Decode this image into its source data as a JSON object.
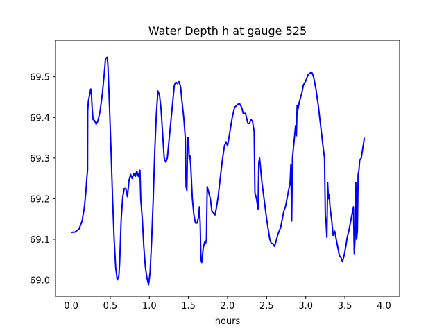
{
  "chart_data": {
    "type": "line",
    "title": "Water Depth h at gauge 525",
    "xlabel": "hours",
    "ylabel": "",
    "xlim": [
      -0.2,
      4.2
    ],
    "ylim": [
      68.96,
      69.59
    ],
    "xticks": [
      0.0,
      0.5,
      1.0,
      1.5,
      2.0,
      2.5,
      3.0,
      3.5,
      4.0
    ],
    "yticks": [
      69.0,
      69.1,
      69.2,
      69.3,
      69.4,
      69.5
    ],
    "xtick_labels": [
      "0.0",
      "0.5",
      "1.0",
      "1.5",
      "2.0",
      "2.5",
      "3.0",
      "3.5",
      "4.0"
    ],
    "ytick_labels": [
      "69.0",
      "69.1",
      "69.2",
      "69.3",
      "69.4",
      "69.5"
    ],
    "grid": false,
    "series": [
      {
        "color": "#0000ff",
        "points": [
          [
            0.0,
            69.117
          ],
          [
            0.05,
            69.118
          ],
          [
            0.1,
            69.125
          ],
          [
            0.14,
            69.145
          ],
          [
            0.17,
            69.18
          ],
          [
            0.19,
            69.22
          ],
          [
            0.2,
            69.25
          ],
          [
            0.21,
            69.27
          ],
          [
            0.212,
            69.415
          ],
          [
            0.22,
            69.44
          ],
          [
            0.24,
            69.46
          ],
          [
            0.25,
            69.47
          ],
          [
            0.26,
            69.455
          ],
          [
            0.27,
            69.42
          ],
          [
            0.28,
            69.395
          ],
          [
            0.3,
            69.392
          ],
          [
            0.32,
            69.383
          ],
          [
            0.34,
            69.39
          ],
          [
            0.37,
            69.415
          ],
          [
            0.4,
            69.46
          ],
          [
            0.42,
            69.5
          ],
          [
            0.44,
            69.545
          ],
          [
            0.46,
            69.548
          ],
          [
            0.47,
            69.53
          ],
          [
            0.49,
            69.43
          ],
          [
            0.51,
            69.32
          ],
          [
            0.53,
            69.2
          ],
          [
            0.55,
            69.1
          ],
          [
            0.57,
            69.03
          ],
          [
            0.59,
            69.0
          ],
          [
            0.61,
            69.01
          ],
          [
            0.62,
            69.04
          ],
          [
            0.64,
            69.15
          ],
          [
            0.66,
            69.205
          ],
          [
            0.68,
            69.225
          ],
          [
            0.7,
            69.225
          ],
          [
            0.72,
            69.205
          ],
          [
            0.74,
            69.245
          ],
          [
            0.76,
            69.26
          ],
          [
            0.78,
            69.25
          ],
          [
            0.8,
            69.262
          ],
          [
            0.82,
            69.255
          ],
          [
            0.84,
            69.268
          ],
          [
            0.86,
            69.255
          ],
          [
            0.88,
            69.27
          ],
          [
            0.89,
            69.2
          ],
          [
            0.91,
            69.15
          ],
          [
            0.93,
            69.08
          ],
          [
            0.95,
            69.03
          ],
          [
            0.97,
            69.005
          ],
          [
            0.99,
            68.988
          ],
          [
            1.01,
            69.02
          ],
          [
            1.03,
            69.1
          ],
          [
            1.05,
            69.2
          ],
          [
            1.07,
            69.32
          ],
          [
            1.09,
            69.41
          ],
          [
            1.11,
            69.465
          ],
          [
            1.13,
            69.455
          ],
          [
            1.15,
            69.42
          ],
          [
            1.17,
            69.36
          ],
          [
            1.19,
            69.3
          ],
          [
            1.21,
            69.29
          ],
          [
            1.23,
            69.3
          ],
          [
            1.25,
            69.34
          ],
          [
            1.28,
            69.4
          ],
          [
            1.3,
            69.44
          ],
          [
            1.32,
            69.48
          ],
          [
            1.34,
            69.487
          ],
          [
            1.36,
            69.483
          ],
          [
            1.38,
            69.488
          ],
          [
            1.4,
            69.475
          ],
          [
            1.42,
            69.435
          ],
          [
            1.44,
            69.4
          ],
          [
            1.46,
            69.35
          ],
          [
            1.47,
            69.23
          ],
          [
            1.48,
            69.22
          ],
          [
            1.49,
            69.35
          ],
          [
            1.5,
            69.35
          ],
          [
            1.51,
            69.3
          ],
          [
            1.52,
            69.305
          ],
          [
            1.53,
            69.28
          ],
          [
            1.55,
            69.2
          ],
          [
            1.57,
            69.16
          ],
          [
            1.59,
            69.14
          ],
          [
            1.61,
            69.14
          ],
          [
            1.63,
            69.155
          ],
          [
            1.64,
            69.18
          ],
          [
            1.65,
            69.14
          ],
          [
            1.66,
            69.05
          ],
          [
            1.67,
            69.043
          ],
          [
            1.69,
            69.08
          ],
          [
            1.71,
            69.095
          ],
          [
            1.72,
            69.09
          ],
          [
            1.73,
            69.1
          ],
          [
            1.74,
            69.23
          ],
          [
            1.76,
            69.215
          ],
          [
            1.78,
            69.2
          ],
          [
            1.8,
            69.17
          ],
          [
            1.82,
            69.165
          ],
          [
            1.84,
            69.16
          ],
          [
            1.86,
            69.18
          ],
          [
            1.88,
            69.205
          ],
          [
            1.9,
            69.24
          ],
          [
            1.93,
            69.29
          ],
          [
            1.96,
            69.33
          ],
          [
            1.98,
            69.34
          ],
          [
            2.0,
            69.33
          ],
          [
            2.03,
            69.365
          ],
          [
            2.06,
            69.4
          ],
          [
            2.09,
            69.425
          ],
          [
            2.12,
            69.43
          ],
          [
            2.15,
            69.435
          ],
          [
            2.18,
            69.425
          ],
          [
            2.2,
            69.41
          ],
          [
            2.23,
            69.41
          ],
          [
            2.26,
            69.385
          ],
          [
            2.28,
            69.385
          ],
          [
            2.3,
            69.395
          ],
          [
            2.32,
            69.39
          ],
          [
            2.34,
            69.365
          ],
          [
            2.35,
            69.215
          ],
          [
            2.37,
            69.2
          ],
          [
            2.39,
            69.175
          ],
          [
            2.4,
            69.29
          ],
          [
            2.41,
            69.3
          ],
          [
            2.42,
            69.28
          ],
          [
            2.44,
            69.24
          ],
          [
            2.46,
            69.21
          ],
          [
            2.48,
            69.18
          ],
          [
            2.5,
            69.15
          ],
          [
            2.52,
            69.125
          ],
          [
            2.54,
            69.1
          ],
          [
            2.56,
            69.09
          ],
          [
            2.58,
            69.09
          ],
          [
            2.6,
            69.083
          ],
          [
            2.62,
            69.095
          ],
          [
            2.64,
            69.11
          ],
          [
            2.66,
            69.12
          ],
          [
            2.68,
            69.13
          ],
          [
            2.7,
            69.15
          ],
          [
            2.72,
            69.17
          ],
          [
            2.74,
            69.18
          ],
          [
            2.76,
            69.2
          ],
          [
            2.78,
            69.22
          ],
          [
            2.8,
            69.24
          ],
          [
            2.81,
            69.285
          ],
          [
            2.82,
            69.145
          ],
          [
            2.83,
            69.3
          ],
          [
            2.85,
            69.34
          ],
          [
            2.86,
            69.36
          ],
          [
            2.87,
            69.38
          ],
          [
            2.88,
            69.355
          ],
          [
            2.89,
            69.43
          ],
          [
            2.9,
            69.42
          ],
          [
            2.92,
            69.44
          ],
          [
            2.95,
            69.46
          ],
          [
            2.97,
            69.48
          ],
          [
            3.0,
            69.49
          ],
          [
            3.03,
            69.505
          ],
          [
            3.06,
            69.51
          ],
          [
            3.08,
            69.51
          ],
          [
            3.1,
            69.5
          ],
          [
            3.13,
            69.47
          ],
          [
            3.16,
            69.43
          ],
          [
            3.19,
            69.38
          ],
          [
            3.22,
            69.33
          ],
          [
            3.24,
            69.3
          ],
          [
            3.25,
            69.16
          ],
          [
            3.26,
            69.14
          ],
          [
            3.27,
            69.105
          ],
          [
            3.28,
            69.24
          ],
          [
            3.29,
            69.2
          ],
          [
            3.3,
            69.21
          ],
          [
            3.31,
            69.18
          ],
          [
            3.33,
            69.15
          ],
          [
            3.35,
            69.11
          ],
          [
            3.37,
            69.12
          ],
          [
            3.39,
            69.1
          ],
          [
            3.41,
            69.08
          ],
          [
            3.43,
            69.06
          ],
          [
            3.45,
            69.055
          ],
          [
            3.47,
            69.045
          ],
          [
            3.49,
            69.06
          ],
          [
            3.51,
            69.08
          ],
          [
            3.53,
            69.105
          ],
          [
            3.55,
            69.12
          ],
          [
            3.57,
            69.14
          ],
          [
            3.59,
            69.16
          ],
          [
            3.61,
            69.18
          ],
          [
            3.62,
            69.065
          ],
          [
            3.63,
            69.1
          ],
          [
            3.64,
            69.24
          ],
          [
            3.65,
            69.1
          ],
          [
            3.66,
            69.12
          ],
          [
            3.67,
            69.26
          ],
          [
            3.68,
            69.27
          ],
          [
            3.69,
            69.295
          ],
          [
            3.71,
            69.3
          ],
          [
            3.73,
            69.325
          ],
          [
            3.75,
            69.35
          ]
        ]
      }
    ]
  }
}
